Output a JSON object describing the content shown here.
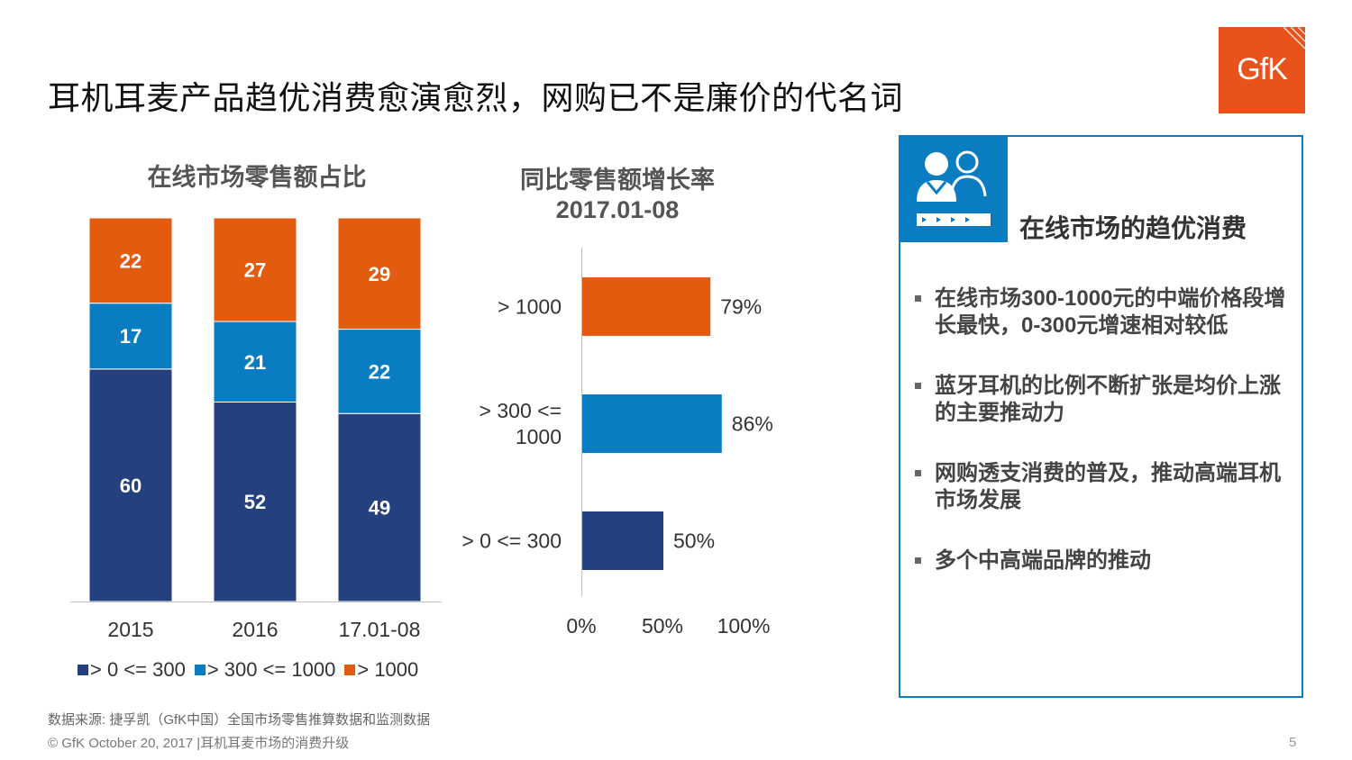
{
  "title": "耳机耳麦产品趋优消费愈演愈烈，网购已不是廉价的代名词",
  "logo": {
    "text": "GfK",
    "color": "#e8521b"
  },
  "colors": {
    "low": "#25407e",
    "mid": "#0a7dc2",
    "high": "#e35b0f",
    "accent": "#0a7dc2"
  },
  "chart_data": [
    {
      "type": "bar",
      "stacked": true,
      "title": "在线市场零售额占比",
      "categories": [
        "2015",
        "2016",
        "17.01-08"
      ],
      "series": [
        {
          "name": "> 0 <= 300",
          "color": "#25407e",
          "values": [
            60,
            52,
            49
          ]
        },
        {
          "name": "> 300 <= 1000",
          "color": "#0a7dc2",
          "values": [
            17,
            21,
            22
          ]
        },
        {
          "name": "> 1000",
          "color": "#e35b0f",
          "values": [
            22,
            27,
            29
          ]
        }
      ],
      "ylim": [
        0,
        100
      ],
      "legend_position": "bottom"
    },
    {
      "type": "bar",
      "orientation": "horizontal",
      "title": "同比零售额增长率",
      "subtitle": "2017.01-08",
      "categories": [
        {
          "label_lines": [
            "> 1000"
          ],
          "value": 79,
          "value_label": "79%",
          "color": "#e35b0f"
        },
        {
          "label_lines": [
            "> 300 <=",
            "1000"
          ],
          "value": 86,
          "value_label": "86%",
          "color": "#0a7dc2"
        },
        {
          "label_lines": [
            "> 0 <= 300"
          ],
          "value": 50,
          "value_label": "50%",
          "color": "#25407e"
        }
      ],
      "xlim": [
        0,
        100
      ],
      "x_ticks": [
        "0%",
        "50%",
        "100%"
      ]
    }
  ],
  "panel": {
    "title": "在线市场的趋优消费",
    "icon": "people-progress-icon",
    "bullets": [
      "在线市场300-1000元的中端价格段增长最快，0-300元增速相对较低",
      "蓝牙耳机的比例不断扩张是均价上涨的主要推动力",
      "网购透支消费的普及，推动高端耳机市场发展",
      "多个中高端品牌的推动"
    ]
  },
  "source": "数据来源: 捷孚凯（GfK中国）全国市场零售推算数据和监测数据",
  "footer": "© GfK October 20, 2017 |耳机耳麦市场的消费升级",
  "page_number": "5"
}
